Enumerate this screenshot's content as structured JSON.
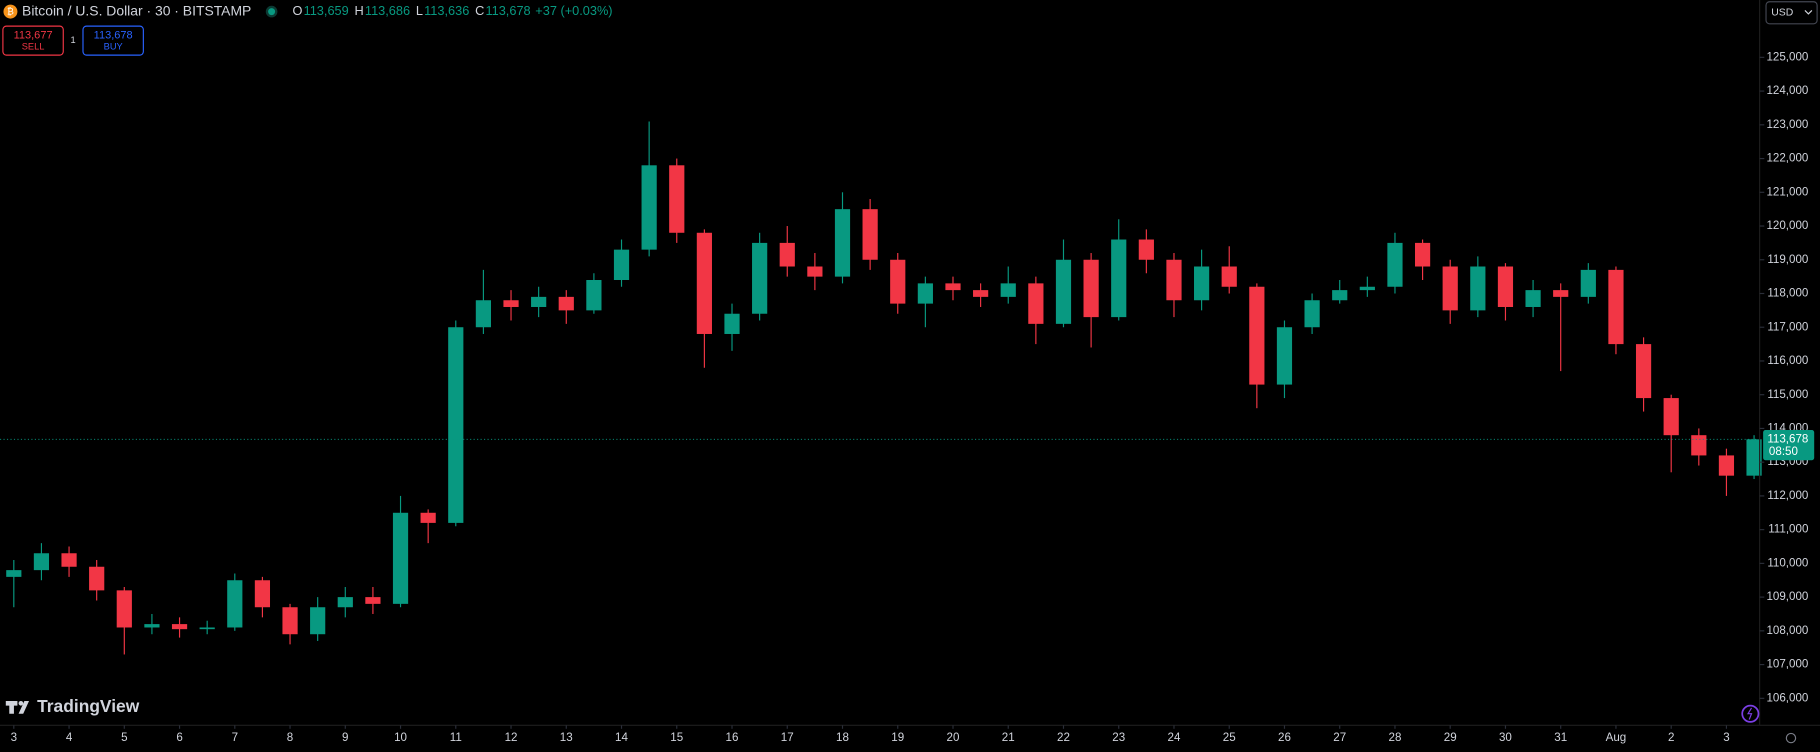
{
  "header": {
    "symbol": "Bitcoin / U.S. Dollar · 30 · BITSTAMP",
    "ohlc": [
      {
        "key": "O",
        "value": "113,659"
      },
      {
        "key": "H",
        "value": "113,686"
      },
      {
        "key": "L",
        "value": "113,636"
      },
      {
        "key": "C",
        "value": "113,678"
      }
    ],
    "change": "+37 (+0.03%)",
    "sell_price": "113,677",
    "sell": "SELL",
    "quantity": "1",
    "buy_price": "113,678",
    "buy": "BUY",
    "currency": "USD",
    "brand": "TradingView"
  },
  "chart_data": {
    "type": "candlestick",
    "up_color": "#089981",
    "down_color": "#f23645",
    "grid": false,
    "x": [
      3,
      3.5,
      4,
      4.5,
      5,
      5.5,
      6,
      6.5,
      7,
      7.5,
      8,
      8.5,
      9,
      9.5,
      10,
      10.5,
      11,
      11.5,
      12,
      12.5,
      13,
      13.5,
      14,
      14.5,
      15,
      15.5,
      16,
      16.5,
      17,
      17.5,
      18,
      18.5,
      19,
      19.5,
      20,
      20.5,
      21,
      21.5,
      22,
      22.5,
      23,
      23.5,
      24,
      24.5,
      25,
      25.5,
      26,
      26.5,
      27,
      27.5,
      28,
      28.5,
      29,
      29.5,
      30,
      30.5,
      31,
      31.5,
      32,
      32.5,
      33,
      33.5,
      34,
      34.5
    ],
    "open": [
      109600,
      109800,
      110300,
      109900,
      109200,
      108100,
      108200,
      108050,
      108100,
      109500,
      108700,
      107900,
      108700,
      109000,
      108800,
      111500,
      111200,
      117000,
      117800,
      117600,
      117900,
      117500,
      118400,
      119300,
      121800,
      119800,
      116800,
      117400,
      119500,
      118800,
      118500,
      120500,
      119000,
      117700,
      118300,
      118100,
      117900,
      118300,
      117100,
      119000,
      117300,
      119600,
      119000,
      117800,
      118800,
      118200,
      115300,
      117000,
      117800,
      118100,
      118200,
      119500,
      118800,
      117500,
      118800,
      117600,
      118100,
      117900,
      118700,
      116500,
      114900,
      113800,
      113200,
      112600
    ],
    "high": [
      110100,
      110600,
      110500,
      110100,
      109300,
      108500,
      108400,
      108300,
      109700,
      109600,
      108800,
      109000,
      109300,
      109300,
      112000,
      111600,
      117200,
      118700,
      118100,
      118200,
      118100,
      118600,
      119600,
      123100,
      122000,
      119900,
      117700,
      119800,
      120000,
      119200,
      121000,
      120800,
      119200,
      118500,
      118500,
      118300,
      118800,
      118500,
      119600,
      119200,
      120200,
      119900,
      119200,
      119300,
      119400,
      118300,
      117200,
      118000,
      118400,
      118500,
      119800,
      119600,
      119000,
      119100,
      118900,
      118400,
      118300,
      118900,
      118800,
      116700,
      115000,
      114000,
      113400,
      113800
    ],
    "low": [
      108700,
      109500,
      109600,
      108900,
      107300,
      107900,
      107800,
      107900,
      108000,
      108400,
      107600,
      107700,
      108400,
      108500,
      108700,
      110600,
      111100,
      116800,
      117200,
      117300,
      117100,
      117400,
      118200,
      119100,
      119500,
      115800,
      116300,
      117200,
      118500,
      118100,
      118300,
      118700,
      117400,
      117000,
      117800,
      117600,
      117700,
      116500,
      117000,
      116400,
      117200,
      118600,
      117300,
      117500,
      118000,
      114600,
      114900,
      116800,
      117700,
      117900,
      118000,
      118400,
      117100,
      117300,
      117200,
      117300,
      115700,
      117700,
      116200,
      114500,
      112700,
      112900,
      112000,
      112500
    ],
    "close": [
      109800,
      110300,
      109900,
      109200,
      108100,
      108200,
      108050,
      108100,
      109500,
      108700,
      107900,
      108700,
      109000,
      108800,
      111500,
      111200,
      117000,
      117800,
      117600,
      117900,
      117500,
      118400,
      119300,
      121800,
      119800,
      116800,
      117400,
      119500,
      118800,
      118500,
      120500,
      119000,
      117700,
      118300,
      118100,
      117900,
      118300,
      117100,
      119000,
      117300,
      119600,
      119000,
      117800,
      118800,
      118200,
      115300,
      117000,
      117800,
      118100,
      118200,
      119500,
      118800,
      117500,
      118800,
      117600,
      118100,
      117900,
      118700,
      116500,
      114900,
      113800,
      113200,
      112600,
      113678
    ],
    "xlim": [
      2.75,
      34.58
    ],
    "xticks": [
      3,
      4,
      5,
      6,
      7,
      8,
      9,
      10,
      11,
      12,
      13,
      14,
      15,
      16,
      17,
      18,
      19,
      20,
      21,
      22,
      23,
      24,
      25,
      26,
      27,
      28,
      29,
      30,
      31,
      {
        "value": 32,
        "label": "Aug"
      },
      {
        "value": 33,
        "label": "2"
      },
      {
        "value": 34,
        "label": "3"
      }
    ],
    "ylim": [
      105200,
      126700
    ],
    "yticks": [
      {
        "value": 106000,
        "label": "106,000"
      },
      {
        "value": 107000,
        "label": "107,000"
      },
      {
        "value": 108000,
        "label": "108,000"
      },
      {
        "value": 109000,
        "label": "109,000"
      },
      {
        "value": 110000,
        "label": "110,000"
      },
      {
        "value": 111000,
        "label": "111,000"
      },
      {
        "value": 112000,
        "label": "112,000"
      },
      {
        "value": 113000,
        "label": "113,000"
      },
      {
        "value": 114000,
        "label": "114,000"
      },
      {
        "value": 115000,
        "label": "115,000"
      },
      {
        "value": 116000,
        "label": "116,000"
      },
      {
        "value": 117000,
        "label": "117,000"
      },
      {
        "value": 118000,
        "label": "118,000"
      },
      {
        "value": 119000,
        "label": "119,000"
      },
      {
        "value": 120000,
        "label": "120,000"
      },
      {
        "value": 121000,
        "label": "121,000"
      },
      {
        "value": 122000,
        "label": "122,000"
      },
      {
        "value": 123000,
        "label": "123,000"
      },
      {
        "value": 124000,
        "label": "124,000"
      },
      {
        "value": 125000,
        "label": "125,000"
      }
    ],
    "last_price": {
      "value": 113678,
      "label": "113,678"
    },
    "countdown": "08:50"
  }
}
